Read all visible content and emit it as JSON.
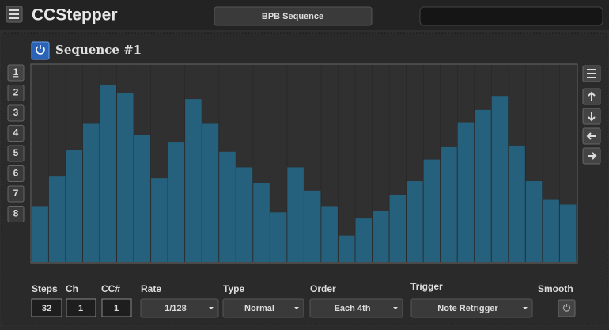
{
  "header": {
    "title": "CCStepper",
    "preset": "BPB Sequence"
  },
  "sequence": {
    "title": "Sequence #1",
    "slots": [
      "1",
      "2",
      "3",
      "4",
      "5",
      "6",
      "7",
      "8"
    ],
    "ylim": [
      0,
      127
    ],
    "values": [
      36,
      55,
      72,
      89,
      114,
      109,
      82,
      54,
      77,
      105,
      89,
      71,
      61,
      51,
      32,
      61,
      46,
      36,
      17,
      28,
      33,
      43,
      52,
      66,
      74,
      90,
      98,
      107,
      75,
      52,
      40,
      37
    ]
  },
  "controls": {
    "steps": {
      "label": "Steps",
      "value": "32"
    },
    "ch": {
      "label": "Ch",
      "value": "1"
    },
    "cc": {
      "label": "CC#",
      "value": "1"
    },
    "rate": {
      "label": "Rate",
      "value": "1/128"
    },
    "type": {
      "label": "Type",
      "value": "Normal"
    },
    "order": {
      "label": "Order",
      "value": "Each 4th"
    },
    "trigger": {
      "label": "Trigger",
      "value": "Note Retrigger"
    },
    "smooth": {
      "label": "Smooth"
    }
  }
}
